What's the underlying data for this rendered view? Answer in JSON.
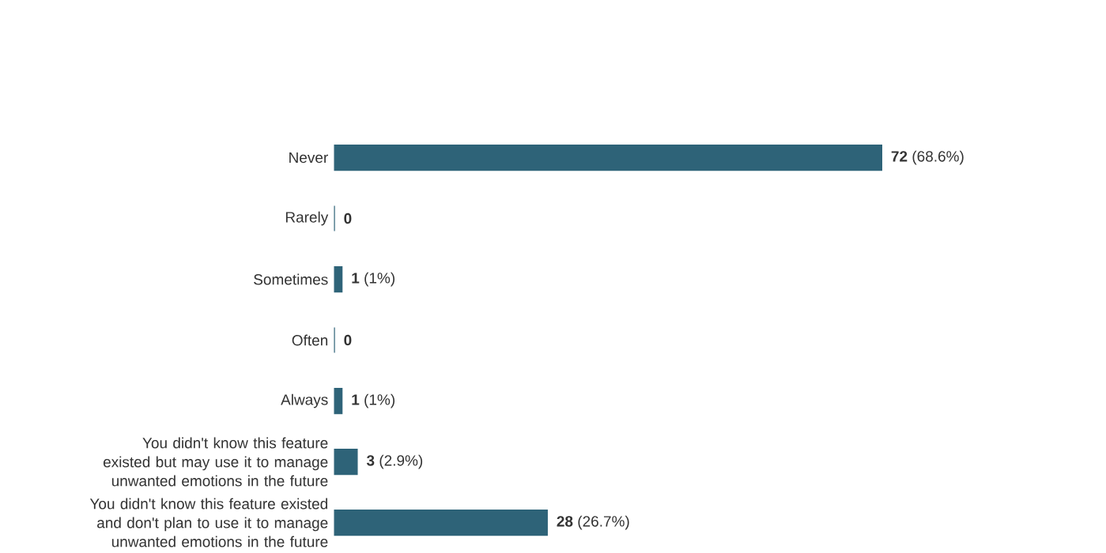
{
  "chart_data": {
    "type": "bar",
    "orientation": "horizontal",
    "color": "#2e6378",
    "categories": [
      "Never",
      "Rarely",
      "Sometimes",
      "Often",
      "Always",
      "You didn't know this feature existed but may use it to manage unwanted emotions in the future",
      "You didn't know this feature existed and don't plan to use it to manage unwanted emotions in the future"
    ],
    "values": [
      72,
      0,
      1,
      0,
      1,
      3,
      28
    ],
    "value_labels": [
      "**72**  (68.6%)",
      "**0**",
      "**1**  (1%)",
      "**0**",
      "**1**  (1%)",
      "**3**  (2.9%)",
      "**28**  (26.7%)"
    ]
  }
}
